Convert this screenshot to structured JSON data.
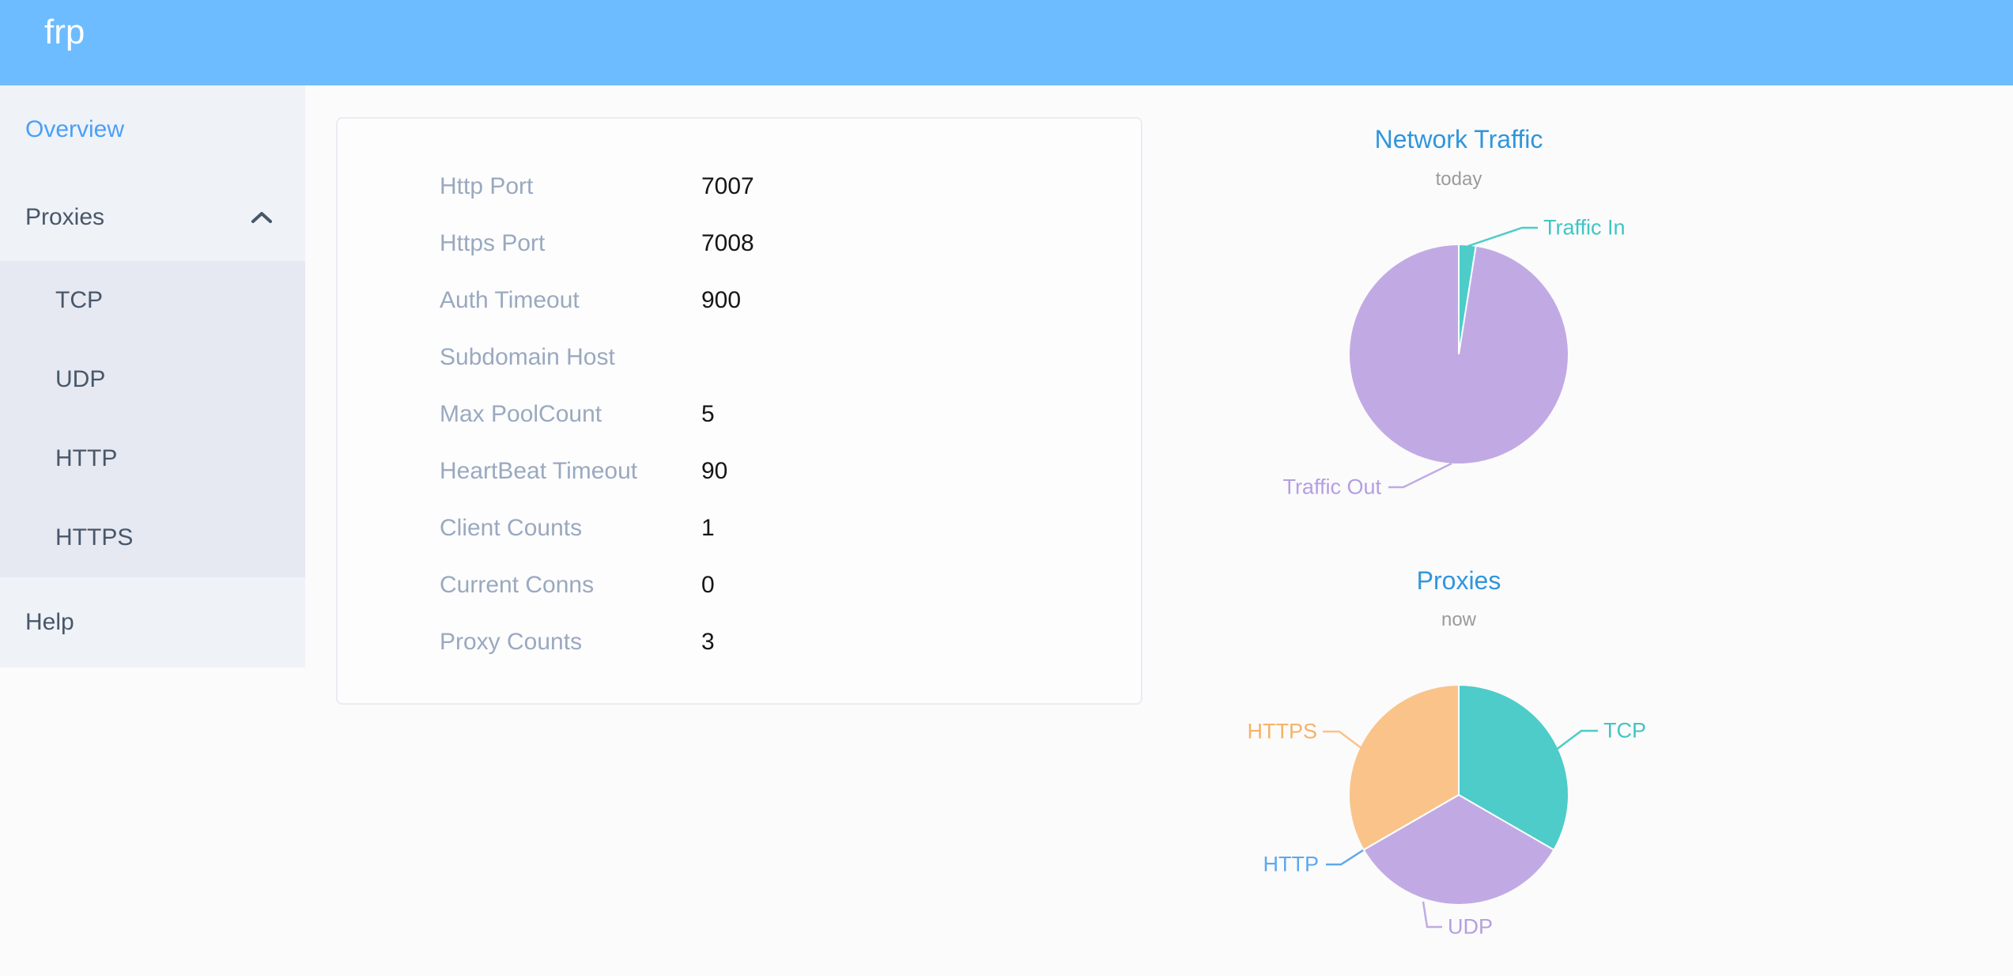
{
  "header": {
    "logo": "frp",
    "color": "#6cbcff"
  },
  "sidebar": {
    "active_item": "Overview",
    "overview_label": "Overview",
    "proxies_label": "Proxies",
    "proxies_expanded": true,
    "submenu": [
      "TCP",
      "UDP",
      "HTTP",
      "HTTPS"
    ],
    "help_label": "Help"
  },
  "overview_card": {
    "rows": [
      {
        "label": "Http Port",
        "value": "7007"
      },
      {
        "label": "Https Port",
        "value": "7008"
      },
      {
        "label": "Auth Timeout",
        "value": "900"
      },
      {
        "label": "Subdomain Host",
        "value": ""
      },
      {
        "label": "Max PoolCount",
        "value": "5"
      },
      {
        "label": "HeartBeat Timeout",
        "value": "90"
      },
      {
        "label": "Client Counts",
        "value": "1"
      },
      {
        "label": "Current Conns",
        "value": "0"
      },
      {
        "label": "Proxy Counts",
        "value": "3"
      }
    ]
  },
  "chart_data": [
    {
      "type": "pie",
      "title": "Network Traffic",
      "subtitle": "today",
      "legend_position": "callout-labels",
      "series": [
        {
          "name": "Traffic In",
          "value": 2.5,
          "unit": "percent_estimate",
          "color": "#4dccc9"
        },
        {
          "name": "Traffic Out",
          "value": 97.5,
          "unit": "percent_estimate",
          "color": "#c1aae4"
        }
      ]
    },
    {
      "type": "pie",
      "title": "Proxies",
      "subtitle": "now",
      "legend_position": "callout-labels",
      "series": [
        {
          "name": "TCP",
          "value": 1,
          "color": "#4dccc9"
        },
        {
          "name": "UDP",
          "value": 1,
          "color": "#c1aae4"
        },
        {
          "name": "HTTP",
          "value": 0,
          "color": "#5ca8ec"
        },
        {
          "name": "HTTPS",
          "value": 1,
          "color": "#f9c38a"
        }
      ]
    }
  ]
}
